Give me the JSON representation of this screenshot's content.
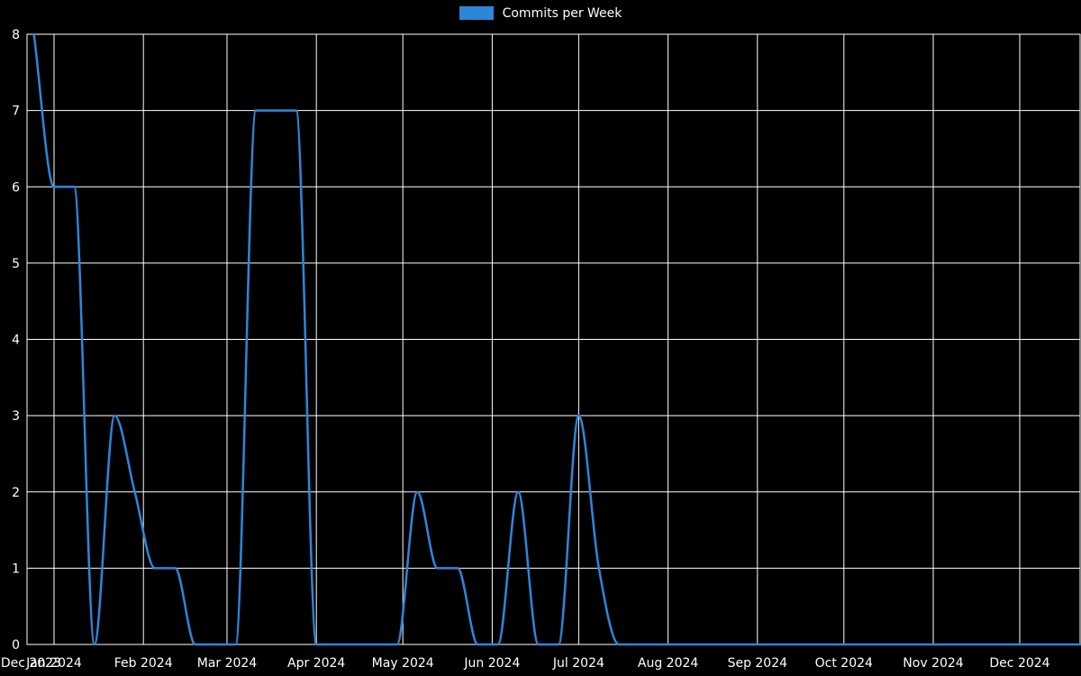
{
  "page": {
    "background": "#000000",
    "text_color": "#ffffff"
  },
  "legend": {
    "label": "Commits per Week",
    "swatch_color": "#2e86d8"
  },
  "chart_data": {
    "type": "line",
    "title": "",
    "xlabel": "",
    "ylabel": "",
    "legend_position": "top-center",
    "grid": true,
    "grid_color": "#ffffff",
    "text_color": "#ffffff",
    "background": "#000000",
    "ylim": [
      0,
      8
    ],
    "y_ticks": [
      0,
      1,
      2,
      3,
      4,
      5,
      6,
      7,
      8
    ],
    "x_start": "2023-12-25",
    "x_step_days": 7,
    "series": [
      {
        "name": "Commits per Week",
        "color": "#2e86d8",
        "values": [
          8,
          6,
          6,
          0,
          3,
          2,
          1,
          1,
          0,
          0,
          0,
          7,
          7,
          7,
          0,
          0,
          0,
          0,
          0,
          2,
          1,
          1,
          0,
          0,
          2,
          0,
          0,
          3,
          1,
          0,
          0,
          0,
          0,
          0,
          0,
          0,
          0,
          0,
          0,
          0,
          0,
          0,
          0,
          0,
          0,
          0,
          0,
          0,
          0,
          0,
          0,
          0,
          0,
          0
        ]
      }
    ],
    "x_ticks": [
      {
        "label": "Dec 2023",
        "day": -8,
        "gridline": false
      },
      {
        "label": "Jan 2024",
        "day": 0,
        "gridline": true
      },
      {
        "label": "Feb 2024",
        "day": 31,
        "gridline": true
      },
      {
        "label": "Mar 2024",
        "day": 60,
        "gridline": true
      },
      {
        "label": "Apr 2024",
        "day": 91,
        "gridline": true
      },
      {
        "label": "May 2024",
        "day": 121,
        "gridline": true
      },
      {
        "label": "Jun 2024",
        "day": 152,
        "gridline": true
      },
      {
        "label": "Jul 2024",
        "day": 182,
        "gridline": true
      },
      {
        "label": "Aug 2024",
        "day": 213,
        "gridline": true
      },
      {
        "label": "Sep 2024",
        "day": 244,
        "gridline": true
      },
      {
        "label": "Oct 2024",
        "day": 274,
        "gridline": true
      },
      {
        "label": "Nov 2024",
        "day": 305,
        "gridline": true
      },
      {
        "label": "Dec 2024",
        "day": 335,
        "gridline": true
      }
    ]
  }
}
